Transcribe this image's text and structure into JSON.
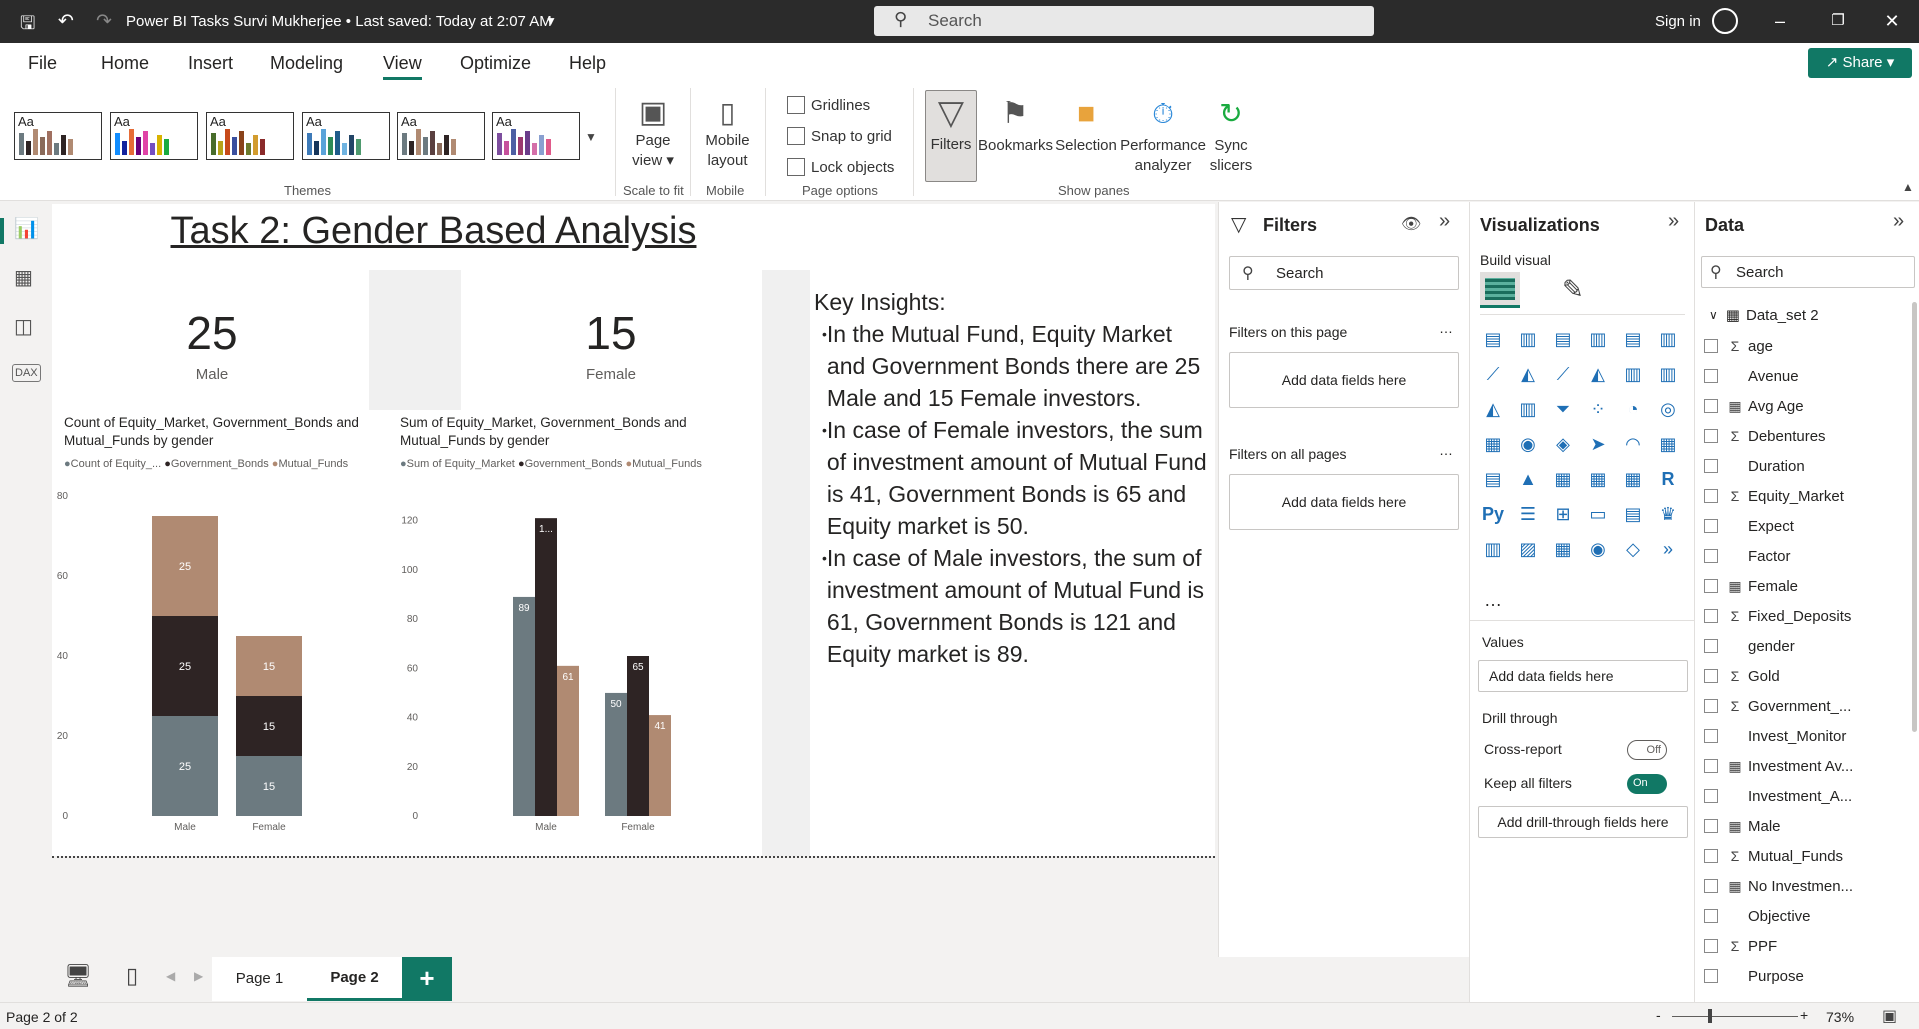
{
  "titlebar": {
    "title": "Power BI Tasks Survi Mukherjee  •  Last saved: Today at 2:07 AM",
    "search_placeholder": "Search",
    "sign_in": "Sign in"
  },
  "menu": {
    "items": [
      "File",
      "Home",
      "Insert",
      "Modeling",
      "View",
      "Optimize",
      "Help"
    ],
    "share": "Share"
  },
  "ribbon": {
    "theme_label": "Aa",
    "themes_group": "Themes",
    "page_view": "Page",
    "page_view2": "view",
    "scale_group": "Scale to fit",
    "mobile_layout": "Mobile",
    "mobile_layout2": "layout",
    "mobile_group": "Mobile",
    "gridlines": "Gridlines",
    "snap": "Snap to grid",
    "lock": "Lock objects",
    "page_options_group": "Page options",
    "filters": "Filters",
    "bookmarks": "Bookmarks",
    "selection": "Selection",
    "performance": "Performance",
    "performance2": "analyzer",
    "sync": "Sync",
    "sync2": "slicers",
    "show_panes_group": "Show panes"
  },
  "report": {
    "title": "Task 2: Gender Based Analysis",
    "card_male_value": "25",
    "card_male_label": "Male",
    "card_female_value": "15",
    "card_female_label": "Female",
    "insights_heading": "Key Insights:",
    "insights": [
      "In the Mutual Fund, Equity Market and Government Bonds there are 25 Male and 15 Female investors.",
      "In case of Female investors, the sum of investment amount of Mutual Fund is 41, Government Bonds is 65 and Equity market is 50.",
      "In case of Male investors, the sum of investment amount of Mutual Fund is 61, Government Bonds is 121 and Equity market is 89."
    ]
  },
  "chart_data": [
    {
      "type": "bar",
      "stacked": true,
      "title": "Count of Equity_Market, Government_Bonds and Mutual_Funds by gender",
      "legend": [
        "Count of Equity_...",
        "Government_Bonds",
        "Mutual_Funds"
      ],
      "categories": [
        "Male",
        "Female"
      ],
      "series": [
        {
          "name": "Count of Equity_...",
          "values": [
            25,
            15
          ],
          "color": "#6c7a80"
        },
        {
          "name": "Government_Bonds",
          "values": [
            25,
            15
          ],
          "color": "#2e2424"
        },
        {
          "name": "Mutual_Funds",
          "values": [
            25,
            15
          ],
          "color": "#b08a72"
        }
      ],
      "y_ticks": [
        0,
        20,
        40,
        60,
        80
      ],
      "ylim": [
        0,
        80
      ]
    },
    {
      "type": "bar",
      "stacked": false,
      "title": "Sum of Equity_Market, Government_Bonds and Mutual_Funds by gender",
      "legend": [
        "Sum of Equity_Market",
        "Government_Bonds",
        "Mutual_Funds"
      ],
      "categories": [
        "Male",
        "Female"
      ],
      "series": [
        {
          "name": "Sum of Equity_Market",
          "values": [
            89,
            50
          ],
          "labels": [
            "89",
            "50"
          ],
          "color": "#6c7a80"
        },
        {
          "name": "Government_Bonds",
          "values": [
            121,
            65
          ],
          "labels": [
            "1...",
            "65"
          ],
          "color": "#2e2424"
        },
        {
          "name": "Mutual_Funds",
          "values": [
            61,
            41
          ],
          "labels": [
            "61",
            "41"
          ],
          "color": "#b08a72"
        }
      ],
      "y_ticks": [
        0,
        20,
        40,
        60,
        80,
        100,
        120
      ],
      "ylim": [
        0,
        130
      ]
    }
  ],
  "filters_pane": {
    "title": "Filters",
    "search": "Search",
    "on_this_page": "Filters on this page",
    "on_all_pages": "Filters on all pages",
    "add_fields": "Add data fields here",
    "more": "…"
  },
  "viz_pane": {
    "title": "Visualizations",
    "build_visual": "Build visual",
    "values": "Values",
    "add_fields": "Add data fields here",
    "drill_through": "Drill through",
    "cross_report": "Cross-report",
    "cross_report_state": "Off",
    "keep_filters": "Keep all filters",
    "keep_filters_state": "On",
    "add_drill": "Add drill-through fields here",
    "more": "…",
    "icons": [
      "Py",
      "R"
    ]
  },
  "data_pane": {
    "title": "Data",
    "search": "Search",
    "table": "Data_set 2",
    "fields": [
      {
        "name": "age",
        "icon": "Σ"
      },
      {
        "name": "Avenue",
        "icon": ""
      },
      {
        "name": "Avg Age",
        "icon": "▦"
      },
      {
        "name": "Debentures",
        "icon": "Σ"
      },
      {
        "name": "Duration",
        "icon": ""
      },
      {
        "name": "Equity_Market",
        "icon": "Σ"
      },
      {
        "name": "Expect",
        "icon": ""
      },
      {
        "name": "Factor",
        "icon": ""
      },
      {
        "name": "Female",
        "icon": "▦"
      },
      {
        "name": "Fixed_Deposits",
        "icon": "Σ"
      },
      {
        "name": "gender",
        "icon": ""
      },
      {
        "name": "Gold",
        "icon": "Σ"
      },
      {
        "name": "Government_...",
        "icon": "Σ"
      },
      {
        "name": "Invest_Monitor",
        "icon": ""
      },
      {
        "name": "Investment Av...",
        "icon": "▦"
      },
      {
        "name": "Investment_A...",
        "icon": ""
      },
      {
        "name": "Male",
        "icon": "▦"
      },
      {
        "name": "Mutual_Funds",
        "icon": "Σ"
      },
      {
        "name": "No Investmen...",
        "icon": "▦"
      },
      {
        "name": "Objective",
        "icon": ""
      },
      {
        "name": "PPF",
        "icon": "Σ"
      },
      {
        "name": "Purpose",
        "icon": ""
      }
    ]
  },
  "tabs": {
    "page1": "Page 1",
    "page2": "Page 2",
    "add": "+"
  },
  "status": {
    "page": "Page 2 of 2",
    "zoom": "73%",
    "minus": "-",
    "plus": "+"
  },
  "colors": {
    "accent": "#117865",
    "titlebar": "#2b2b2b"
  }
}
